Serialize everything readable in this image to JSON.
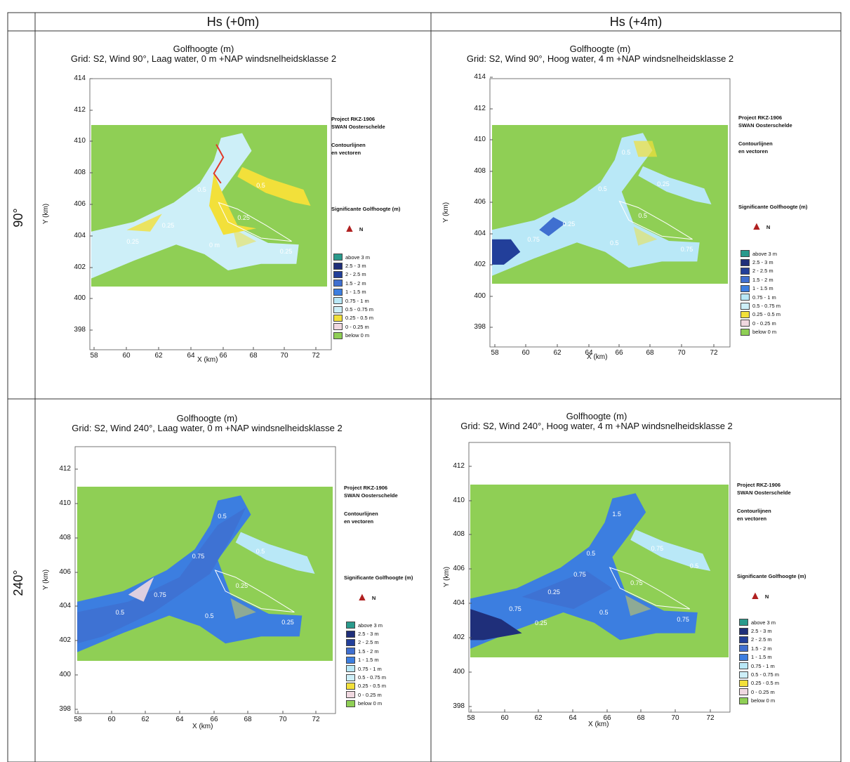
{
  "headers": {
    "col1": "Hs (+0m)",
    "col2": "Hs (+4m)",
    "row1": "90°",
    "row2": "240°"
  },
  "legend_colors": [
    "#2a9a8c",
    "#1f2f7a",
    "#223f9a",
    "#3f6fd0",
    "#3c7ee0",
    "#b9e8f7",
    "#cdeff8",
    "#f2e03a",
    "#f0d8e0",
    "#8fcf55"
  ],
  "panels": [
    {
      "title_line1": "Golfhoogte (m)",
      "title_line2": "Grid: S2, Wind 90°, Laag water, 0 m +NAP windsnelheidsklasse 2",
      "y_axis_label": "Y (km)",
      "x_axis_label": "X (km)",
      "y_ticks": [
        "414",
        "412",
        "410",
        "408",
        "406",
        "404",
        "402",
        "400",
        "398"
      ],
      "x_ticks": [
        "58",
        "60",
        "62",
        "64",
        "66",
        "68",
        "70",
        "72"
      ],
      "project_line1": "Project RKZ-1906",
      "project_line2": "SWAN Oosterschelde",
      "contour_line1": "Contourlijnen",
      "contour_line2": "en vectoren",
      "legend_title": "Significante Golfhoogte (m)",
      "north_label": "N",
      "legend": [
        "above 3 m",
        "2.5 - 3 m",
        "2 - 2.5 m",
        "1.5 - 2 m",
        "1 - 1.5 m",
        "0.75 - 1 m",
        "0.5 - 0.75 m",
        "0.25 - 0.5 m",
        "0 - 0.25 m",
        "below 0 m"
      ],
      "contour_labels": [
        "0.5",
        "0.25",
        "0.25",
        "0 m",
        "0.25",
        "0.25",
        "0.5"
      ]
    },
    {
      "title_line1": "Golfhoogte (m)",
      "title_line2": "Grid: S2, Wind 90°, Hoog water, 4 m +NAP windsnelheidsklasse 2",
      "y_axis_label": "Y (km)",
      "x_axis_label": "X (km)",
      "y_ticks": [
        "414",
        "412",
        "410",
        "408",
        "406",
        "404",
        "402",
        "400",
        "398"
      ],
      "x_ticks": [
        "58",
        "60",
        "62",
        "64",
        "66",
        "68",
        "70",
        "72"
      ],
      "project_line1": "Project RKZ-1906",
      "project_line2": "SWAN Oosterschelde",
      "contour_line1": "Contourlijnen",
      "contour_line2": "en vectoren",
      "legend_title": "Significante Golfhoogte (m)",
      "north_label": "N",
      "legend": [
        "above 3 m",
        "2.5 - 3 m",
        "2 - 2.5 m",
        "1.5 - 2 m",
        "1 - 1.5 m",
        "0.75 - 1 m",
        "0.5 - 0.75 m",
        "0.25 - 0.5 m",
        "0 - 0.25 m",
        "below 0 m"
      ],
      "contour_labels": [
        "0.5",
        "0.75",
        "0.25",
        "0.5",
        "0.5",
        "0.75",
        "0.25",
        "0.5"
      ]
    },
    {
      "title_line1": "Golfhoogte (m)",
      "title_line2": "Grid: S2, Wind 240°, Laag water, 0 m +NAP windsnelheidsklasse 2",
      "y_axis_label": "Y (km)",
      "x_axis_label": "X (km)",
      "y_ticks": [
        "412",
        "410",
        "408",
        "406",
        "404",
        "402",
        "400",
        "398"
      ],
      "x_ticks": [
        "58",
        "60",
        "62",
        "64",
        "66",
        "68",
        "70",
        "72"
      ],
      "project_line1": "Project RKZ-1906",
      "project_line2": "SWAN Oosterschelde",
      "contour_line1": "Contourlijnen",
      "contour_line2": "en vectoren",
      "legend_title": "Significante Golfhoogte (m)",
      "north_label": "N",
      "legend": [
        "above 3 m",
        "2.5 - 3 m",
        "2 - 2.5 m",
        "1.5 - 2 m",
        "1 - 1.5 m",
        "0.75 - 1 m",
        "0.5 - 0.75 m",
        "0.25 - 0.5 m",
        "0 - 0.25 m",
        "below 0 m"
      ],
      "contour_labels": [
        "0.75",
        "0.5",
        "0.75",
        "0.5",
        "0.25",
        "0.25",
        "0.5",
        "0.5"
      ]
    },
    {
      "title_line1": "Golfhoogte (m)",
      "title_line2": "Grid: S2, Wind 240°, Hoog water, 4 m +NAP windsnelheidsklasse 2",
      "y_axis_label": "Y (km)",
      "x_axis_label": "X (km)",
      "y_ticks": [
        "412",
        "410",
        "408",
        "406",
        "404",
        "402",
        "400",
        "398"
      ],
      "x_ticks": [
        "58",
        "60",
        "62",
        "64",
        "66",
        "68",
        "70",
        "72"
      ],
      "project_line1": "Project RKZ-1906",
      "project_line2": "SWAN Oosterschelde",
      "contour_line1": "Contourlijnen",
      "contour_line2": "en vectoren",
      "legend_title": "Significante Golfhoogte (m)",
      "north_label": "N",
      "legend": [
        "above 3 m",
        "2.5 - 3 m",
        "2 - 2.5 m",
        "1.5 - 2 m",
        "1 - 1.5 m",
        "0.75 - 1 m",
        "0.5 - 0.75 m",
        "0.25 - 0.5 m",
        "0 - 0.25 m",
        "below 0 m"
      ],
      "contour_labels": [
        "0.5",
        "0.75",
        "0.25",
        "0.5",
        "0.75",
        "0.75",
        "0.75",
        "1.5",
        "0.25",
        "0.75",
        "0.5"
      ]
    }
  ]
}
